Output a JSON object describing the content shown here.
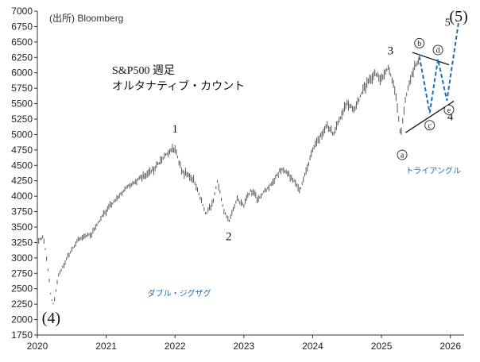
{
  "chart_data": {
    "type": "line",
    "title": "S&P500 週足",
    "subtitle": "オルタナティブ・カウント",
    "source": "(出所)  Bloomberg",
    "xlim": [
      2020.0,
      2026.2
    ],
    "ylim": [
      1750,
      7000
    ],
    "x_ticks": [
      "2020",
      "2021",
      "2022",
      "2023",
      "2024",
      "2025",
      "2026"
    ],
    "y_ticks": [
      1750,
      2000,
      2250,
      2500,
      2750,
      3000,
      3250,
      3500,
      3750,
      4000,
      4250,
      4500,
      4750,
      5000,
      5250,
      5500,
      5750,
      6000,
      6250,
      6500,
      6750,
      7000
    ],
    "price_path": [
      [
        2020.0,
        3250
      ],
      [
        2020.08,
        3350
      ],
      [
        2020.13,
        3050
      ],
      [
        2020.2,
        2350
      ],
      [
        2020.24,
        2240
      ],
      [
        2020.3,
        2700
      ],
      [
        2020.45,
        3050
      ],
      [
        2020.6,
        3300
      ],
      [
        2020.8,
        3400
      ],
      [
        2020.95,
        3700
      ],
      [
        2021.1,
        3900
      ],
      [
        2021.3,
        4150
      ],
      [
        2021.5,
        4300
      ],
      [
        2021.7,
        4450
      ],
      [
        2021.85,
        4650
      ],
      [
        2022.0,
        4780
      ],
      [
        2022.1,
        4400
      ],
      [
        2022.2,
        4350
      ],
      [
        2022.3,
        4200
      ],
      [
        2022.45,
        3700
      ],
      [
        2022.55,
        3900
      ],
      [
        2022.62,
        4250
      ],
      [
        2022.7,
        3800
      ],
      [
        2022.78,
        3580
      ],
      [
        2022.9,
        3950
      ],
      [
        2023.0,
        3850
      ],
      [
        2023.1,
        4100
      ],
      [
        2023.2,
        3950
      ],
      [
        2023.4,
        4200
      ],
      [
        2023.55,
        4450
      ],
      [
        2023.7,
        4300
      ],
      [
        2023.82,
        4100
      ],
      [
        2024.0,
        4750
      ],
      [
        2024.2,
        5150
      ],
      [
        2024.3,
        5000
      ],
      [
        2024.5,
        5500
      ],
      [
        2024.6,
        5400
      ],
      [
        2024.75,
        5750
      ],
      [
        2024.9,
        6000
      ],
      [
        2025.0,
        5900
      ],
      [
        2025.1,
        6100
      ],
      [
        2025.2,
        5700
      ],
      [
        2025.28,
        4950
      ],
      [
        2025.35,
        5600
      ],
      [
        2025.45,
        6000
      ],
      [
        2025.55,
        6250
      ]
    ],
    "projection": [
      [
        2025.55,
        6270
      ],
      [
        2025.7,
        5350
      ],
      [
        2025.82,
        6220
      ],
      [
        2025.95,
        5550
      ],
      [
        2026.12,
        6820
      ]
    ],
    "triangle_lines": [
      [
        [
          2025.45,
          6330
        ],
        [
          2025.98,
          6130
        ]
      ],
      [
        [
          2025.35,
          5030
        ],
        [
          2026.05,
          5540
        ]
      ]
    ],
    "wave_labels": [
      {
        "label": "(4)",
        "x": 2020.2,
        "y": 1940,
        "size": "large"
      },
      {
        "label": "1",
        "x": 2022.0,
        "y": 5030,
        "size": "medium"
      },
      {
        "label": "2",
        "x": 2022.78,
        "y": 3290,
        "size": "medium"
      },
      {
        "label": "3",
        "x": 2025.13,
        "y": 6300,
        "size": "medium"
      },
      {
        "label": "4",
        "x": 2026.0,
        "y": 5230,
        "size": "medium"
      },
      {
        "label": "5",
        "x": 2025.96,
        "y": 6760,
        "size": "small"
      },
      {
        "label": "(5)",
        "x": 2026.12,
        "y": 6830,
        "size": "large"
      }
    ],
    "circle_labels": [
      {
        "label": "a",
        "x": 2025.3,
        "y": 4670
      },
      {
        "label": "b",
        "x": 2025.55,
        "y": 6480
      },
      {
        "label": "c",
        "x": 2025.7,
        "y": 5150
      },
      {
        "label": "d",
        "x": 2025.82,
        "y": 6370
      },
      {
        "label": "e",
        "x": 2025.98,
        "y": 5400
      }
    ],
    "annotations": [
      {
        "text": "トライアングル",
        "x": 2025.35,
        "y": 4370
      },
      {
        "text": "ダブル・ジグザグ",
        "x": 2021.6,
        "y": 2380
      }
    ],
    "colors": {
      "candles": "#555555",
      "projection": "#1f6fb5",
      "triangle": "#111111",
      "annotation": "#1f6fb5"
    }
  }
}
